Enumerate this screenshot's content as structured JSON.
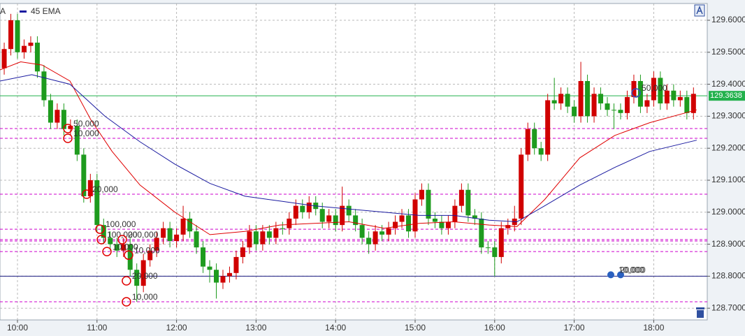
{
  "chart_data": {
    "type": "candlestick",
    "x": [
      9.8333,
      9.9167,
      10,
      10.0833,
      10.1667,
      10.25,
      10.3333,
      10.4167,
      10.5,
      10.5833,
      10.6667,
      10.75,
      10.8333,
      10.9167,
      11,
      11.0833,
      11.1667,
      11.25,
      11.3333,
      11.4167,
      11.5,
      11.5833,
      11.6667,
      11.75,
      11.8333,
      11.9167,
      12,
      12.0833,
      12.1667,
      12.25,
      12.3333,
      12.4167,
      12.5,
      12.5833,
      12.6667,
      12.75,
      12.8333,
      12.9167,
      13,
      13.0833,
      13.1667,
      13.25,
      13.3333,
      13.4167,
      13.5,
      13.5833,
      13.6667,
      13.75,
      13.8333,
      13.9167,
      14,
      14.0833,
      14.1667,
      14.25,
      14.3333,
      14.4167,
      14.5,
      14.5833,
      14.6667,
      14.75,
      14.8333,
      14.9167,
      15,
      15.0833,
      15.1667,
      15.25,
      15.3333,
      15.4167,
      15.5,
      15.5833,
      15.6667,
      15.75,
      15.8333,
      15.9167,
      16,
      16.0833,
      16.1667,
      16.25,
      16.3333,
      16.4167,
      16.5,
      16.5833,
      16.6667,
      16.75,
      16.8333,
      16.9167,
      17,
      17.0833,
      17.1667,
      17.25,
      17.3333,
      17.4167,
      17.5,
      17.5833,
      17.6667,
      17.75,
      17.8333,
      17.9167,
      18,
      18.0833,
      18.1667,
      18.25,
      18.3333,
      18.4167,
      18.5
    ],
    "open": [
      129.45,
      129.51,
      129.6,
      129.5,
      129.52,
      129.53,
      129.44,
      129.35,
      129.28,
      129.32,
      129.26,
      129.27,
      129.18,
      129.05,
      129.1,
      128.96,
      128.92,
      128.9,
      128.88,
      128.9,
      128.82,
      128.77,
      128.85,
      128.88,
      128.92,
      128.95,
      128.91,
      128.93,
      128.98,
      128.94,
      128.89,
      128.83,
      128.82,
      128.78,
      128.8,
      128.81,
      128.86,
      128.89,
      128.94,
      128.9,
      128.94,
      128.92,
      128.95,
      128.95,
      128.98,
      129.02,
      129.0,
      129.03,
      129.01,
      128.97,
      128.99,
      128.96,
      129.02,
      128.99,
      128.96,
      128.92,
      128.9,
      128.94,
      128.93,
      128.95,
      128.97,
      128.99,
      128.94,
      129.04,
      129.07,
      128.98,
      128.97,
      128.95,
      128.97,
      129.02,
      129.07,
      128.99,
      128.98,
      128.89,
      128.89,
      128.86,
      128.95,
      128.96,
      128.98,
      129.18,
      129.26,
      129.2,
      129.18,
      129.35,
      129.34,
      129.37,
      129.33,
      129.3,
      129.41,
      129.3,
      129.37,
      129.34,
      129.32,
      129.32,
      129.31,
      129.36,
      129.41,
      129.33,
      129.35,
      129.42,
      129.34,
      129.38,
      129.35,
      129.36,
      129.31
    ],
    "high": [
      129.53,
      129.62,
      129.62,
      129.54,
      129.55,
      129.55,
      129.46,
      129.37,
      129.34,
      129.34,
      129.29,
      129.29,
      129.2,
      129.12,
      129.12,
      128.98,
      128.94,
      128.92,
      128.92,
      128.92,
      128.84,
      128.87,
      128.9,
      128.94,
      128.97,
      128.97,
      128.95,
      129.02,
      129.0,
      128.96,
      128.91,
      128.85,
      128.84,
      128.82,
      128.83,
      128.88,
      128.91,
      128.96,
      128.96,
      128.96,
      128.96,
      128.97,
      128.97,
      129.0,
      129.04,
      129.04,
      129.05,
      129.05,
      129.03,
      129.01,
      129.01,
      129.08,
      129.04,
      129.01,
      128.98,
      128.94,
      128.96,
      128.96,
      128.97,
      128.99,
      129.01,
      129.01,
      129.06,
      129.09,
      129.09,
      129.0,
      128.99,
      128.99,
      129.04,
      129.09,
      129.09,
      129.01,
      129.0,
      128.91,
      128.91,
      128.97,
      128.98,
      129.02,
      129.2,
      129.28,
      129.28,
      129.22,
      129.37,
      129.42,
      129.39,
      129.39,
      129.35,
      129.47,
      129.43,
      129.39,
      129.39,
      129.36,
      129.34,
      129.34,
      129.38,
      129.43,
      129.43,
      129.37,
      129.44,
      129.44,
      129.4,
      129.4,
      129.38,
      129.38,
      129.39
    ],
    "low": [
      129.43,
      129.49,
      129.48,
      129.48,
      129.5,
      129.42,
      129.33,
      129.26,
      129.26,
      129.24,
      129.24,
      129.16,
      129.03,
      129.03,
      128.94,
      128.9,
      128.88,
      128.86,
      128.86,
      128.8,
      128.72,
      128.75,
      128.83,
      128.86,
      128.9,
      128.89,
      128.89,
      128.91,
      128.92,
      128.87,
      128.81,
      128.78,
      128.73,
      128.76,
      128.78,
      128.79,
      128.84,
      128.87,
      128.88,
      128.88,
      128.9,
      128.9,
      128.93,
      128.93,
      128.96,
      128.98,
      128.98,
      128.99,
      128.95,
      128.95,
      128.94,
      128.94,
      128.97,
      128.94,
      128.9,
      128.87,
      128.88,
      128.91,
      128.91,
      128.93,
      128.95,
      128.92,
      128.92,
      129.02,
      128.96,
      128.95,
      128.93,
      128.93,
      128.95,
      129.0,
      128.97,
      128.96,
      128.87,
      128.87,
      128.8,
      128.84,
      128.93,
      128.94,
      128.96,
      129.16,
      129.18,
      129.16,
      129.16,
      129.32,
      129.32,
      129.31,
      129.28,
      129.28,
      129.28,
      129.28,
      129.32,
      129.3,
      129.26,
      129.29,
      129.29,
      129.34,
      129.31,
      129.31,
      129.33,
      129.32,
      129.32,
      129.33,
      129.33,
      129.29,
      129.29
    ],
    "close": [
      129.51,
      129.6,
      129.5,
      129.52,
      129.53,
      129.44,
      129.35,
      129.28,
      129.32,
      129.26,
      129.27,
      129.18,
      129.05,
      129.1,
      128.96,
      128.92,
      128.9,
      128.88,
      128.9,
      128.82,
      128.77,
      128.85,
      128.88,
      128.92,
      128.95,
      128.91,
      128.93,
      128.98,
      128.94,
      128.89,
      128.83,
      128.82,
      128.78,
      128.8,
      128.81,
      128.86,
      128.89,
      128.94,
      128.9,
      128.94,
      128.92,
      128.95,
      128.95,
      128.98,
      129.02,
      129.0,
      129.03,
      129.01,
      128.97,
      128.99,
      128.96,
      129.02,
      128.99,
      128.96,
      128.92,
      128.9,
      128.94,
      128.93,
      128.95,
      128.97,
      128.99,
      128.94,
      129.04,
      129.07,
      128.98,
      128.97,
      128.95,
      128.97,
      129.02,
      129.07,
      128.99,
      128.98,
      128.89,
      128.89,
      128.86,
      128.95,
      128.96,
      128.98,
      129.18,
      129.26,
      129.2,
      129.18,
      129.35,
      129.34,
      129.37,
      129.33,
      129.3,
      129.41,
      129.3,
      129.37,
      129.34,
      129.32,
      129.32,
      129.31,
      129.36,
      129.41,
      129.33,
      129.35,
      129.42,
      129.34,
      129.38,
      129.35,
      129.36,
      129.31,
      129.37
    ],
    "up_color": "#d00000",
    "down_color": "#1e9b1e",
    "series": [
      {
        "name": "A",
        "color": "#e00000",
        "x": [
          9.78,
          10.04,
          10.31,
          10.66,
          10.92,
          11.19,
          11.54,
          11.98,
          12.42,
          12.86,
          13.3,
          13.73,
          14.17,
          14.61,
          15.05,
          15.49,
          15.93,
          16.28,
          16.63,
          17.07,
          17.51,
          17.95,
          18.54
        ],
        "values": [
          129.445,
          129.47,
          129.46,
          129.41,
          129.29,
          129.19,
          129.085,
          129.0,
          128.93,
          128.94,
          128.96,
          128.965,
          128.97,
          128.95,
          128.965,
          128.97,
          128.96,
          128.955,
          129.04,
          129.17,
          129.24,
          129.28,
          129.32
        ]
      },
      {
        "name": "45 EMA",
        "color": "#1a1aa0",
        "x": [
          9.78,
          10.18,
          10.66,
          11.1,
          11.54,
          11.98,
          12.42,
          12.86,
          13.3,
          13.73,
          14.17,
          14.61,
          15.05,
          15.49,
          15.93,
          16.28,
          16.63,
          17.07,
          17.51,
          17.95,
          18.54
        ],
        "values": [
          129.41,
          129.43,
          129.4,
          129.3,
          129.22,
          129.15,
          129.09,
          129.05,
          129.035,
          129.02,
          129.01,
          129.0,
          128.99,
          128.99,
          128.975,
          128.97,
          129.02,
          129.085,
          129.14,
          129.19,
          129.225
        ]
      }
    ],
    "levels": [
      129.2616,
      129.231,
      129.0563,
      128.947,
      128.9144,
      128.91,
      128.877,
      128.72
    ],
    "level_color": "#cc00cc",
    "current_price": 129.3638,
    "current_color": "#22b14c",
    "alert_line": 128.8,
    "alert_color": "#1a1a80",
    "alert_labels": [
      "10,000",
      "20,000"
    ],
    "orders": [
      {
        "x": 10.633,
        "price": 129.2616,
        "label": "50,000"
      },
      {
        "x": 10.633,
        "price": 129.231,
        "label": "10,000"
      },
      {
        "x": 10.87,
        "price": 129.0563,
        "label": "20,000"
      },
      {
        "x": 11.037,
        "price": 128.947,
        "label": "100,000"
      },
      {
        "x": 11.055,
        "price": 128.9144,
        "label": "100,000"
      },
      {
        "x": 11.318,
        "price": 128.9144,
        "label": "200,000"
      },
      {
        "x": 11.125,
        "price": 128.877,
        "label": "10,000"
      },
      {
        "x": 11.397,
        "price": 128.866,
        "label": "10,000"
      },
      {
        "x": 11.37,
        "price": 128.7856,
        "label": "20,000"
      },
      {
        "x": 11.37,
        "price": 128.72,
        "label": "10,000"
      },
      {
        "x": 17.777,
        "price": 129.373,
        "label": "50,000"
      }
    ],
    "xlim": [
      9.7803,
      18.6731
    ],
    "ylim": [
      128.6633,
      129.6524
    ],
    "xticks": [
      {
        "value": 10,
        "label": "10:00"
      },
      {
        "value": 11,
        "label": "11:00"
      },
      {
        "value": 12,
        "label": "12:00"
      },
      {
        "value": 13,
        "label": "13:00"
      },
      {
        "value": 14,
        "label": "14:00"
      },
      {
        "value": 15,
        "label": "15:00"
      },
      {
        "value": 16,
        "label": "16:00"
      },
      {
        "value": 17,
        "label": "17:00"
      },
      {
        "value": 18,
        "label": "18:00"
      }
    ],
    "yticks": [
      {
        "value": 128.7,
        "label": "128.7000"
      },
      {
        "value": 128.8,
        "label": "128.8000"
      },
      {
        "value": 128.9,
        "label": "128.9000"
      },
      {
        "value": 129.0,
        "label": "129.0000"
      },
      {
        "value": 129.1,
        "label": "129.1000"
      },
      {
        "value": 129.2,
        "label": "129.2000"
      },
      {
        "value": 129.3,
        "label": "129.3000"
      },
      {
        "value": 129.4,
        "label": "129.4000"
      },
      {
        "value": 129.5,
        "label": "129.5000"
      },
      {
        "value": 129.6,
        "label": "129.6000"
      }
    ],
    "grid": true
  }
}
